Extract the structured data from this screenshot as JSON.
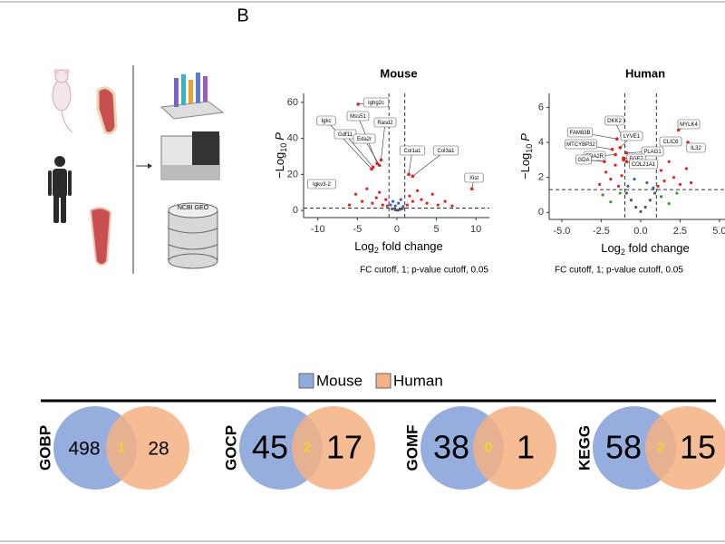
{
  "panel_label": "B",
  "workflow": {
    "database_label": "NCBI GEO"
  },
  "volcano_plots": [
    {
      "type": "scatter",
      "title": "Mouse",
      "y_label": [
        "−Log",
        "10",
        "P"
      ],
      "x_label": [
        "Log",
        "2",
        " fold change"
      ],
      "caption": "FC cutoff, 1; p-value cutoff, 0.05",
      "xlim": [
        -11.8,
        11.7
      ],
      "ylim": [
        -4,
        65
      ],
      "xticks": [
        -10,
        -5,
        0,
        5,
        10
      ],
      "yticks": [
        0,
        20,
        40,
        60
      ],
      "cutoff_x": [
        -1,
        1
      ],
      "cutoff_y": 1.3,
      "point_groups": [
        {
          "color": "#e8201f",
          "x": [
            -6,
            -5.2,
            -4.4,
            -3.8,
            -3.1,
            -2.6,
            -2.2,
            -1.8,
            -1.4,
            -1.2,
            1.3,
            1.6,
            2.0,
            2.6,
            3.1,
            3.8,
            4.5,
            5.2,
            6.1,
            7.0
          ],
          "y": [
            3,
            9,
            5,
            12,
            4,
            7,
            10,
            3,
            6,
            2.5,
            3,
            8,
            5,
            11,
            6,
            4,
            9,
            3,
            5,
            2.5
          ]
        },
        {
          "color": "#3a5fcd",
          "x": [
            -0.8,
            -0.5,
            -0.2,
            0.2,
            0.5,
            0.8
          ],
          "y": [
            3,
            5,
            2.5,
            4,
            6,
            2.2
          ]
        },
        {
          "color": "#555555",
          "x": [
            -0.6,
            -0.2,
            0.1,
            0.4,
            0.7
          ],
          "y": [
            0.8,
            0.3,
            0.1,
            0.5,
            1.0
          ]
        }
      ],
      "genes": [
        {
          "name": "Ighg2c",
          "x": -4.9,
          "y": 59
        },
        {
          "name": "Igkc",
          "x": -3.2,
          "y": 23
        },
        {
          "name": "Mss51",
          "x": -2.5,
          "y": 26
        },
        {
          "name": "Gdf11",
          "x": -3.0,
          "y": 24
        },
        {
          "name": "Rasd2",
          "x": -2.0,
          "y": 28
        },
        {
          "name": "Eda2r",
          "x": -2.2,
          "y": 25
        },
        {
          "name": "Col1a1",
          "x": 1.5,
          "y": 20
        },
        {
          "name": "Col3a1",
          "x": 2.0,
          "y": 19
        },
        {
          "name": "Xist",
          "x": 9.5,
          "y": 12
        },
        {
          "name": "Igkv3-2",
          "x": -10.5,
          "y": 13
        }
      ]
    },
    {
      "type": "scatter",
      "title": "Human",
      "y_label": [
        "−Log",
        "10",
        "P"
      ],
      "x_label": [
        "Log",
        "2",
        " fold change"
      ],
      "caption": "FC cutoff, 1; p-value cutoff, 0.05",
      "xlim": [
        -5.8,
        5.35
      ],
      "ylim": [
        -0.4,
        6.8
      ],
      "xticks": [
        {
          "value": -5,
          "label": "-5.0"
        },
        {
          "value": -2.5,
          "label": "-2.5"
        },
        {
          "value": 0,
          "label": "0.0"
        },
        {
          "value": 2.5,
          "label": "2.5"
        },
        {
          "value": 5,
          "label": "5.0"
        }
      ],
      "yticks": [
        0,
        2,
        4,
        6
      ],
      "cutoff_x": [
        -1,
        1
      ],
      "cutoff_y": 1.3,
      "point_groups": [
        {
          "color": "#e8201f",
          "x": [
            -2.6,
            -2.2,
            -1.9,
            -1.6,
            -1.4,
            -1.2,
            -1.1,
            1.1,
            1.3,
            1.5,
            1.8,
            2.1,
            2.5,
            2.9,
            3.2
          ],
          "y": [
            1.6,
            2.3,
            1.9,
            2.7,
            1.5,
            2.1,
            3.0,
            1.5,
            2.4,
            1.8,
            2.9,
            2.0,
            1.6,
            2.5,
            1.7
          ]
        },
        {
          "color": "#2ea02c",
          "x": [
            -2.4,
            -1.9,
            -1.3,
            1.3,
            1.8,
            2.3
          ],
          "y": [
            1.0,
            0.6,
            1.1,
            0.9,
            0.5,
            1.1
          ]
        },
        {
          "color": "#3a5fcd",
          "x": [
            -0.8,
            -0.4,
            0.4,
            0.8
          ],
          "y": [
            1.5,
            1.9,
            1.7,
            1.4
          ]
        },
        {
          "color": "#555555",
          "x": [
            -0.9,
            -0.6,
            -0.3,
            0,
            0.3,
            0.6,
            0.9
          ],
          "y": [
            1.1,
            0.7,
            0.3,
            0.05,
            0.3,
            0.7,
            1.1
          ]
        }
      ],
      "genes": [
        {
          "name": "FAM83B",
          "x": -1.5,
          "y": 4.2
        },
        {
          "name": "DKK2",
          "x": -1.2,
          "y": 4.4
        },
        {
          "name": "MTCYBP32",
          "x": -1.8,
          "y": 3.6
        },
        {
          "name": "LYVE1",
          "x": -1.3,
          "y": 3.7
        },
        {
          "name": "EDA2R",
          "x": -1.6,
          "y": 3.3
        },
        {
          "name": "PLAG1",
          "x": -0.9,
          "y": 3.4
        },
        {
          "name": "GDA",
          "x": -2.3,
          "y": 2.9
        },
        {
          "name": "FGF7",
          "x": -1.1,
          "y": 3.1
        },
        {
          "name": "COL21A1",
          "x": -0.9,
          "y": 2.9
        },
        {
          "name": "CLIC6",
          "x": 2.0,
          "y": 4.0
        },
        {
          "name": "MYLK4",
          "x": 2.4,
          "y": 4.7
        },
        {
          "name": "IL32",
          "x": 3.0,
          "y": 4.0
        }
      ]
    }
  ],
  "venn": {
    "legend": [
      {
        "name": "Mouse",
        "color": "#8faadc"
      },
      {
        "name": "Human",
        "color": "#f4b183"
      }
    ],
    "sets": [
      {
        "label": "GOBP",
        "mouse_only": 498,
        "shared": 1,
        "human_only": 28
      },
      {
        "label": "GOCP",
        "mouse_only": 45,
        "shared": 2,
        "human_only": 17
      },
      {
        "label": "GOMF",
        "mouse_only": 38,
        "shared": 0,
        "human_only": 1
      },
      {
        "label": "KEGG",
        "mouse_only": 58,
        "shared": 2,
        "human_only": 15
      }
    ]
  }
}
